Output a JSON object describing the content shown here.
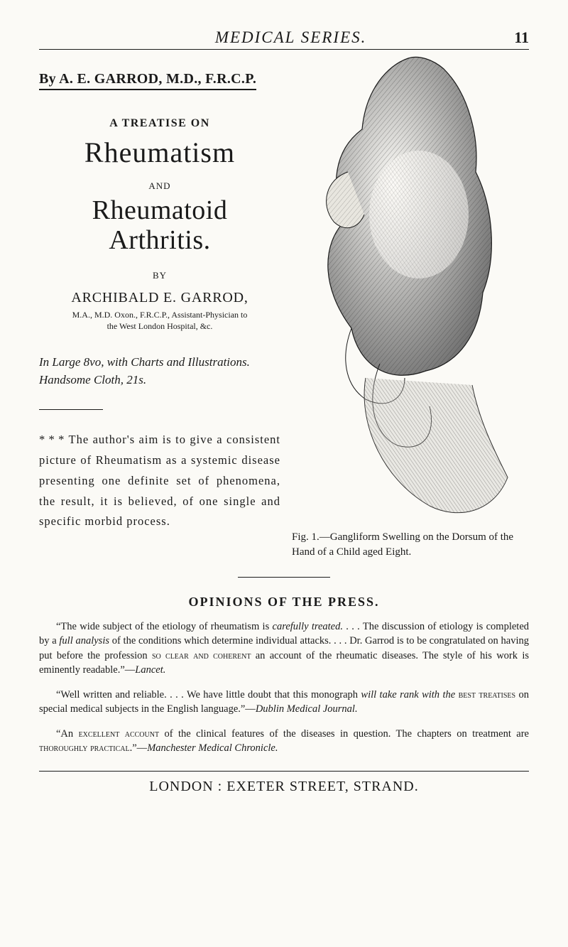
{
  "header": {
    "running_title": "MEDICAL SERIES.",
    "page_number": "11"
  },
  "left": {
    "by_author_line": "By A. E. GARROD, M.D., F.R.C.P.",
    "treatise_label": "A TREATISE ON",
    "title1": "Rheumatism",
    "and_label": "AND",
    "title2": "Rheumatoid Arthritis.",
    "by_label": "BY",
    "author_name": "ARCHIBALD E. GARROD,",
    "credentials_line1": "M.A., M.D. Oxon., F.R.C.P., Assistant-Physician to",
    "credentials_line2": "the West London Hospital, &c.",
    "format_line": "In Large 8vo, with Charts and Illustrations. Handsome Cloth, 21s.",
    "blurb": "* * * The author's aim is to give a consistent picture of Rheumatism as a systemic disease presenting one definite set of phenomena, the result, it is believed, of one single and specific morbid process."
  },
  "figure": {
    "caption": "Fig. 1.—Gangliform Swelling on the Dorsum of the Hand of a Child aged Eight.",
    "ink_color": "#2a2a2a",
    "bg_color": "#fbfaf6"
  },
  "opinions": {
    "heading": "OPINIONS OF THE PRESS.",
    "reviews": [
      {
        "text_html": "“The wide subject of the etiology of rheumatism is <em>carefully treated.</em> . . . The discussion of etiology is completed by a <em>full analysis</em> of the conditions which determine individual attacks. . . . Dr. Garrod is to be congratulated on having put before the profession <span class='sc'>so clear and coherent</span> an account of the rheumatic diseases. The style of his work is eminently readable.”—<em>Lancet.</em>"
      },
      {
        "text_html": "“Well written and reliable. . . . We have little doubt that this monograph <em>will take rank with the</em> <span class='sc'>best treatises</span> on special medical subjects in the English language.”—<em>Dublin Medical Journal.</em>"
      },
      {
        "text_html": "“An <span class='sc'>excellent account</span> of the clinical features of the diseases in question. The chapters on treatment are <span class='sc'>thoroughly practical</span>.”—<em>Manchester Medical Chronicle.</em>"
      }
    ]
  },
  "footer": {
    "line": "LONDON : EXETER STREET, STRAND."
  },
  "style": {
    "page_bg": "#fbfaf6",
    "text_color": "#1a1a1a",
    "rule_color": "#1a1a1a",
    "body_font": "Georgia, 'Times New Roman', serif",
    "running_title_fontsize": 23,
    "page_num_fontsize": 22,
    "big_title_fontsize": 40
  }
}
